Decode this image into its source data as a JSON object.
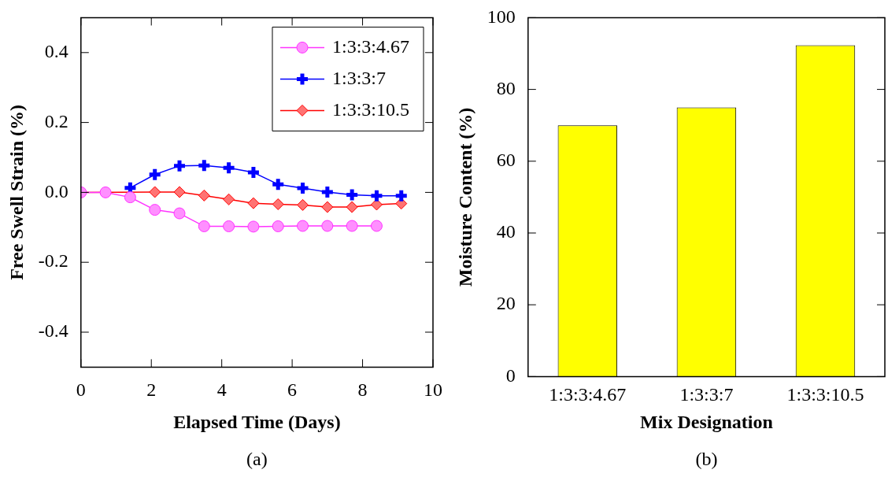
{
  "chart_data": [
    {
      "type": "line",
      "xlabel": "Elapsed Time (Days)",
      "ylabel": "Free Swell Strain (%)",
      "annotations": [
        "(a)"
      ],
      "x": [
        0,
        0.7,
        1.4,
        2.1,
        2.8,
        3.5,
        4.2,
        4.9,
        5.6,
        6.3,
        7.0,
        7.7,
        8.4,
        9.1
      ],
      "series": [
        {
          "name": "1:3:3:4.67",
          "color": "#ff33ff",
          "marker": "circle",
          "values": [
            0,
            0,
            -0.014,
            -0.05,
            -0.06,
            -0.097,
            -0.097,
            -0.098,
            -0.097,
            -0.096,
            -0.096,
            -0.096,
            -0.096,
            null
          ]
        },
        {
          "name": "1:3:3:7",
          "color": "#0000ff",
          "marker": "cross",
          "values": [
            null,
            null,
            0.013,
            0.051,
            0.076,
            0.077,
            0.07,
            0.057,
            0.023,
            0.012,
            0.001,
            -0.007,
            -0.01,
            -0.01
          ]
        },
        {
          "name": "1:3:3:10.5",
          "color": "#ff0000",
          "marker": "diamond",
          "values": [
            0,
            null,
            null,
            0.001,
            0.001,
            -0.009,
            -0.02,
            -0.031,
            -0.034,
            -0.036,
            -0.042,
            -0.042,
            -0.035,
            -0.032
          ]
        }
      ],
      "xlim": [
        0,
        10
      ],
      "xticks": [
        0,
        2,
        4,
        6,
        8,
        10
      ],
      "ylim": [
        -0.5,
        0.5
      ],
      "yticks": [
        -0.4,
        -0.2,
        {
          "value": 0,
          "label": "0.0"
        },
        0.2,
        0.4
      ],
      "legend": "top right",
      "grid": false
    },
    {
      "type": "bar",
      "xlabel": "Mix Designation",
      "ylabel": "Moisture Content (%)",
      "annotations": [
        "(b)"
      ],
      "categories": [
        "1:3:3:4.67",
        "1:3:3:7",
        "1:3:3:10.5"
      ],
      "values": [
        70,
        75,
        92.3
      ],
      "color": "#ffff00",
      "ylim": [
        0,
        100
      ],
      "yticks": [
        0,
        20,
        40,
        60,
        80,
        100
      ],
      "legend": false,
      "grid": false
    }
  ]
}
